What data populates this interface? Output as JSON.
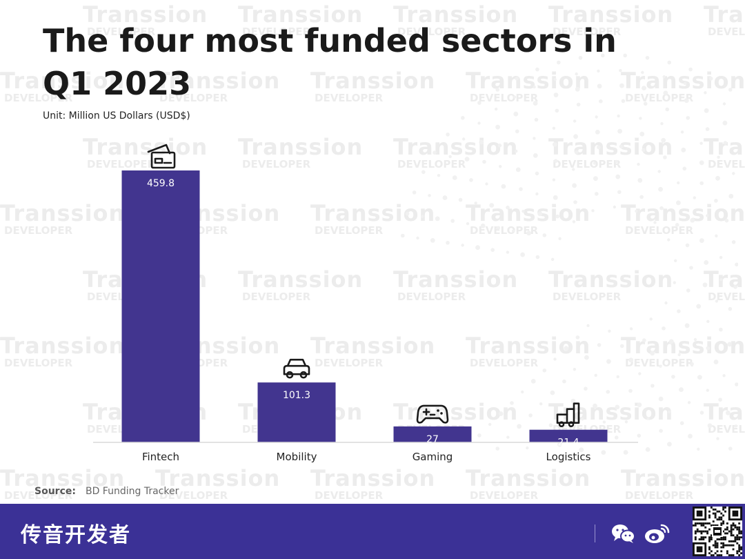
{
  "title": "The four most funded sectors in Q1 2023",
  "unit": "Unit: Million US Dollars (USD$)",
  "source": {
    "label": "Source:",
    "text": "BD Funding Tracker"
  },
  "watermark": {
    "line1": "Transsion",
    "line2": "DEVELOPER"
  },
  "footer": {
    "brand": "传音开发者",
    "background": "#3b3196"
  },
  "icons": [
    "card-icon",
    "car-icon",
    "gamepad-icon",
    "truck-icon",
    "wechat-icon",
    "weibo-icon",
    "qr-code"
  ],
  "chart_data": {
    "type": "bar",
    "categories": [
      "Fintech",
      "Mobility",
      "Gaming",
      "Logistics"
    ],
    "values": [
      459.8,
      101.3,
      27,
      21.4
    ],
    "labels": [
      "459.8",
      "101.3",
      "27",
      "21.4"
    ],
    "title": "The four most funded sectors in Q1 2023",
    "ylabel": "Million US Dollars (USD$)",
    "xlabel": "",
    "ylim": [
      0,
      459.8
    ],
    "bar_color": "#42358f",
    "grid": false
  }
}
